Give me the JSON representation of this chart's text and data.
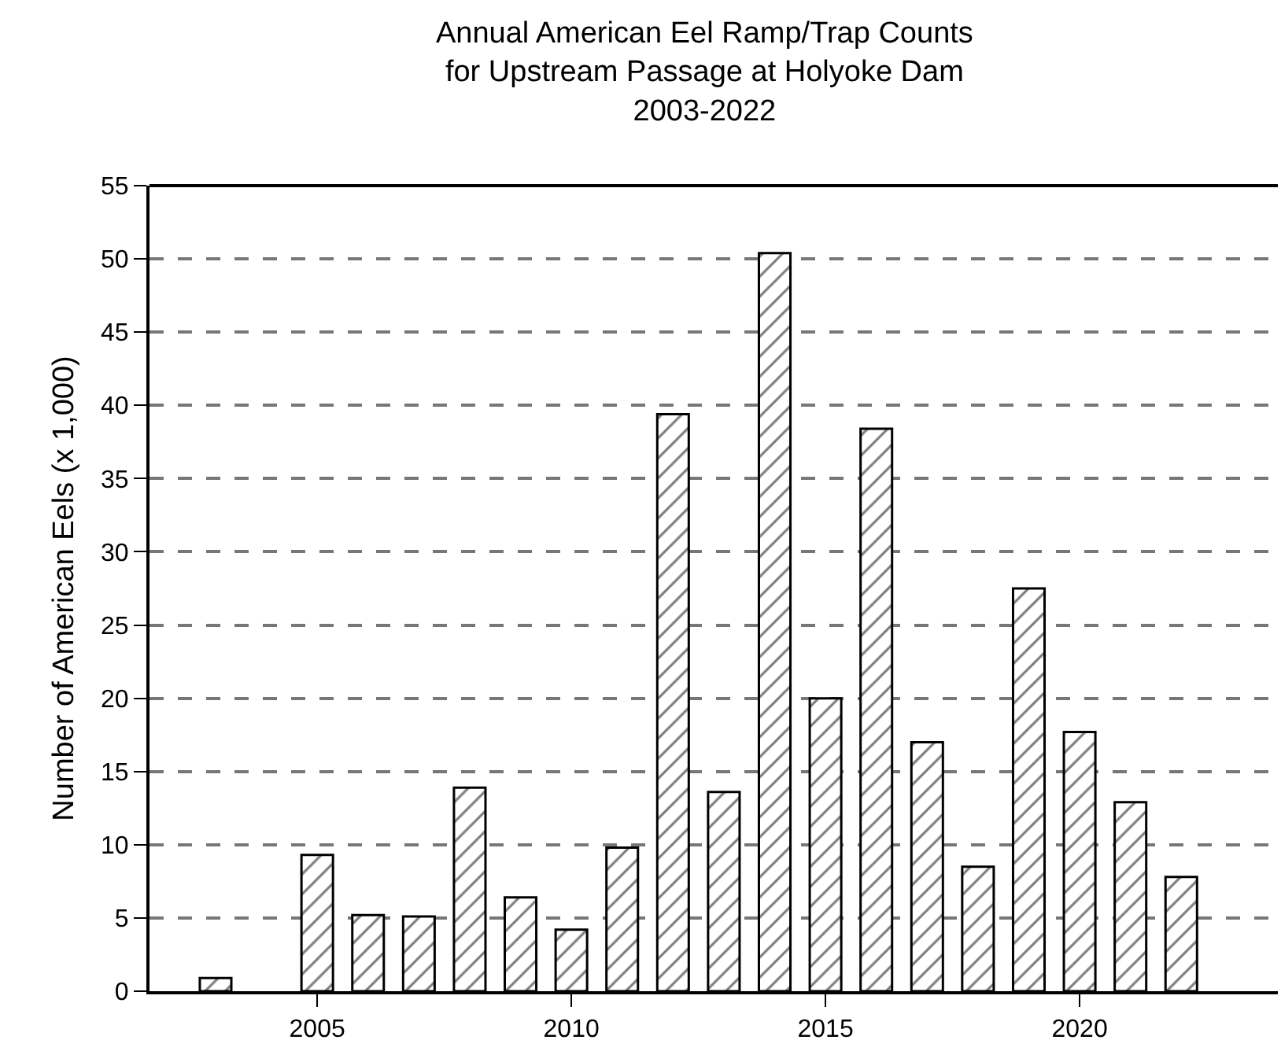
{
  "chart_data": {
    "type": "bar",
    "title": "Annual American Eel Ramp/Trap Counts\nfor Upstream Passage at Holyoke Dam\n2003-2022",
    "ylabel": "Number of American Eels (x 1,000)",
    "x": [
      2003,
      2004,
      2005,
      2006,
      2007,
      2008,
      2009,
      2010,
      2011,
      2012,
      2013,
      2014,
      2015,
      2016,
      2017,
      2018,
      2019,
      2020,
      2021,
      2022
    ],
    "series": [
      {
        "color": "#000000",
        "values": [
          0.9,
          null,
          9.3,
          5.2,
          5.1,
          13.9,
          6.4,
          4.2,
          9.8,
          39.4,
          13.6,
          50.4,
          20.0,
          38.4,
          17.0,
          8.5,
          27.5,
          17.7,
          12.9,
          7.8
        ]
      }
    ],
    "xlim": [
      2001.7,
      2023.9
    ],
    "xticks": [
      2005,
      2010,
      2015,
      2020
    ],
    "ylim": [
      0,
      55
    ],
    "yticks": [
      0,
      5,
      10,
      15,
      20,
      25,
      30,
      35,
      40,
      45,
      50,
      55
    ],
    "grid": "y"
  }
}
